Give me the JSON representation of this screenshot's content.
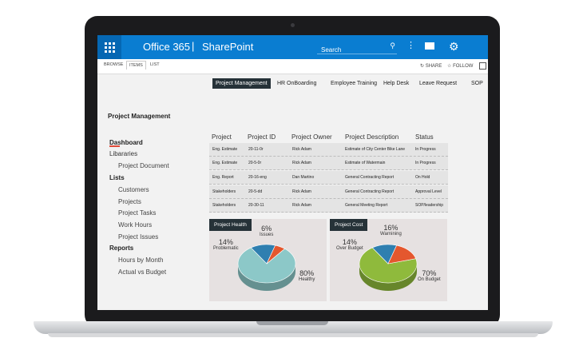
{
  "header": {
    "app_name": "Office 365",
    "separator": "|",
    "site_name": "SharePoint",
    "search_placeholder": "Search"
  },
  "ribbon": {
    "tabs": [
      {
        "label": "BROWSE"
      },
      {
        "label": "ITEMS"
      },
      {
        "label": "LIST"
      }
    ],
    "share_label": "SHARE",
    "follow_label": "FOLLOW"
  },
  "top_nav": [
    {
      "label": "Project Management"
    },
    {
      "label": "HR OnBoarding"
    },
    {
      "label": "Employee Training"
    },
    {
      "label": "Help Desk"
    },
    {
      "label": "Leave Request"
    },
    {
      "label": "SOP"
    }
  ],
  "page_title": "Project Management",
  "quick_launch": {
    "dashboard": "Dashboard",
    "libraries": "Libararies",
    "project_document": "Project Document",
    "lists": "Lists",
    "customers": "Customers",
    "projects": "Projects",
    "project_tasks": "Project Tasks",
    "work_hours": "Work Hours",
    "project_issues": "Project Issues",
    "reports": "Reports",
    "hours_by_month": "Hours by Month",
    "actual_vs_budget": "Actual vs Budget"
  },
  "table": {
    "columns": [
      "Project",
      "Project ID",
      "Project Owner",
      "Project Description",
      "Status"
    ],
    "rows": [
      [
        "Eng. Estimate",
        "20-11-0r",
        "Rick Adam",
        "Estimate of City Center Bike Lane",
        "In Progress"
      ],
      [
        "Eng. Estimate",
        "20-5-0r",
        "Rick Adam",
        "Estimate of Watermain",
        "In Progress"
      ],
      [
        "Eng. Report",
        "20-16-eng",
        "Dan Martino",
        "General Contracting  Report",
        "On Hold"
      ],
      [
        "Stakeholders",
        "20-5-dd",
        "Rick Adam",
        "General Contracting  Report",
        "Approval Level"
      ],
      [
        "Stakeholders",
        "20-30-11",
        "Rick Adam",
        "General Meeting  Report",
        "SOP/leadership"
      ]
    ]
  },
  "project_health": {
    "title": "Project Health",
    "slices": [
      {
        "label": "Healthy",
        "value": 80,
        "display": "80%",
        "color": "#8cc8c8"
      },
      {
        "label": "Problematic",
        "value": 14,
        "display": "14%",
        "color": "#2f7fb0"
      },
      {
        "label": "Issues",
        "value": 6,
        "display": "6%",
        "color": "#e4572e"
      }
    ]
  },
  "project_cost": {
    "title": "Project Cost",
    "slices": [
      {
        "label": "On Budget",
        "value": 70,
        "display": "70%",
        "color": "#8fba3c"
      },
      {
        "label": "Over Budget",
        "value": 14,
        "display": "14%",
        "color": "#2f7fb0"
      },
      {
        "label": "Warnining",
        "value": 16,
        "display": "16%",
        "color": "#e4572e"
      }
    ]
  }
}
